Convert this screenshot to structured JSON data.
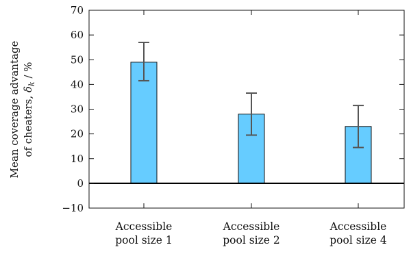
{
  "chart_data": {
    "type": "bar",
    "categories": [
      [
        "Accessible",
        "pool size 1"
      ],
      [
        "Accessible",
        "pool size 2"
      ],
      [
        "Accessible",
        "pool size 4"
      ]
    ],
    "values": [
      49,
      28,
      23
    ],
    "error_low": [
      41.5,
      19.5,
      14.5
    ],
    "error_high": [
      57,
      36.5,
      31.5
    ],
    "ylabel_line1": "Mean coverage advantage",
    "ylabel_line2_prefix": "of cheaters, ",
    "ylabel_symbol": "δ",
    "ylabel_subscript": "k",
    "ylabel_suffix": " / %",
    "ylim": [
      -10,
      70
    ],
    "yticks": [
      -10,
      0,
      10,
      20,
      30,
      40,
      50,
      60,
      70
    ],
    "ytick_labels": [
      "−10",
      "0",
      "10",
      "20",
      "30",
      "40",
      "50",
      "60",
      "70"
    ],
    "bar_color": "#66ccff",
    "bar_edge_color": "#111111",
    "error_color": "#555555",
    "zero_line": true,
    "grid": false
  }
}
